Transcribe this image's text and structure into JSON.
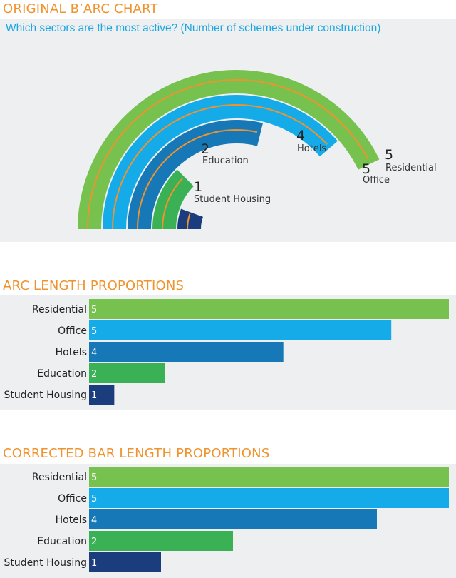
{
  "chart_data": [
    {
      "type": "arc-bar",
      "title": "ORIGINAL B’ARC CHART",
      "subtitle": "Which sectors are the most active? (Number of schemes under construction)",
      "categories": [
        "Residential",
        "Office",
        "Hotels",
        "Education",
        "Student Housing"
      ],
      "values": [
        5,
        5,
        4,
        2,
        1
      ]
    },
    {
      "type": "bar",
      "title": "ARC LENGTH PROPORTIONS",
      "categories": [
        "Residential",
        "Office",
        "Hotels",
        "Education",
        "Student Housing"
      ],
      "values": [
        5,
        5,
        4,
        2,
        1
      ],
      "relative_lengths": [
        1.0,
        0.84,
        0.54,
        0.21,
        0.07
      ]
    },
    {
      "type": "bar",
      "title": "CORRECTED BAR LENGTH PROPORTIONS",
      "categories": [
        "Residential",
        "Office",
        "Hotels",
        "Education",
        "Student Housing"
      ],
      "values": [
        5,
        5,
        4,
        2,
        1
      ],
      "relative_lengths": [
        1.0,
        1.0,
        0.8,
        0.4,
        0.2
      ]
    }
  ],
  "colors": {
    "Residential": "#77c14f",
    "Office": "#15abe8",
    "Hotels": "#1678b6",
    "Education": "#39b154",
    "Student Housing": "#1b3d7e",
    "accent": "#f0932e",
    "panel": "#eeeff1"
  }
}
